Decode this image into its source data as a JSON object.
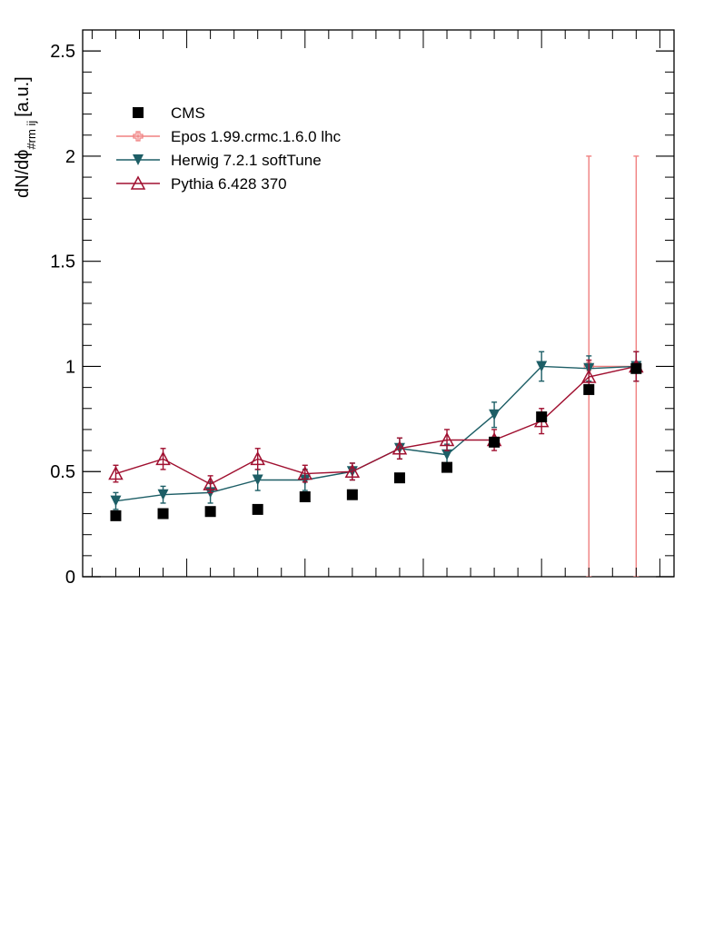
{
  "chart_data": {
    "type": "scatter",
    "title": "",
    "xlabel": "",
    "ylabel": {
      "main": "dN/dϕ",
      "subscript": "#rm ij",
      "units": "[a.u.]"
    },
    "ylim": [
      0,
      2.6
    ],
    "yticks": [
      0,
      0.5,
      1,
      1.5,
      2,
      2.5
    ],
    "ytick_labels": [
      "0",
      "0.5",
      "1",
      "1.5",
      "2",
      "2.5"
    ],
    "x": [
      1,
      2,
      3,
      4,
      5,
      6,
      7,
      8,
      9,
      10,
      11,
      12
    ],
    "xlim": [
      0.3,
      12.8
    ],
    "legend_position": "top-left",
    "series": [
      {
        "name": "CMS",
        "color": "#000000",
        "marker": "square",
        "line": false,
        "values": [
          0.29,
          0.3,
          0.31,
          0.32,
          0.38,
          0.39,
          0.47,
          0.52,
          0.64,
          0.76,
          0.89,
          0.99
        ],
        "errors": [
          0,
          0,
          0,
          0,
          0,
          0,
          0,
          0,
          0,
          0,
          0,
          0
        ]
      },
      {
        "name": "Epos 1.99.crmc.1.6.0 lhc",
        "color": "#f08080",
        "marker": "open-cross",
        "line": true,
        "values": [
          null,
          null,
          null,
          null,
          null,
          null,
          null,
          null,
          null,
          null,
          1.0,
          1.0
        ],
        "errors": [
          null,
          null,
          null,
          null,
          null,
          null,
          null,
          null,
          null,
          null,
          1.0,
          1.0
        ]
      },
      {
        "name": "Herwig 7.2.1 softTune",
        "color": "#1d5e66",
        "marker": "triangle-down",
        "line": true,
        "values": [
          0.36,
          0.39,
          0.4,
          0.46,
          0.46,
          0.5,
          0.61,
          0.58,
          0.77,
          1.0,
          0.99,
          1.0
        ],
        "errors": [
          0.04,
          0.04,
          0.05,
          0.05,
          0.05,
          0.04,
          0.05,
          0.05,
          0.06,
          0.07,
          0.06,
          0.07
        ]
      },
      {
        "name": "Pythia 6.428 370",
        "color": "#a01030",
        "marker": "open-triangle-up",
        "line": true,
        "values": [
          0.49,
          0.56,
          0.44,
          0.56,
          0.49,
          0.5,
          0.61,
          0.65,
          0.65,
          0.74,
          0.95,
          1.0
        ],
        "errors": [
          0.04,
          0.05,
          0.04,
          0.05,
          0.04,
          0.04,
          0.05,
          0.05,
          0.05,
          0.06,
          0.08,
          0.07
        ]
      }
    ]
  }
}
